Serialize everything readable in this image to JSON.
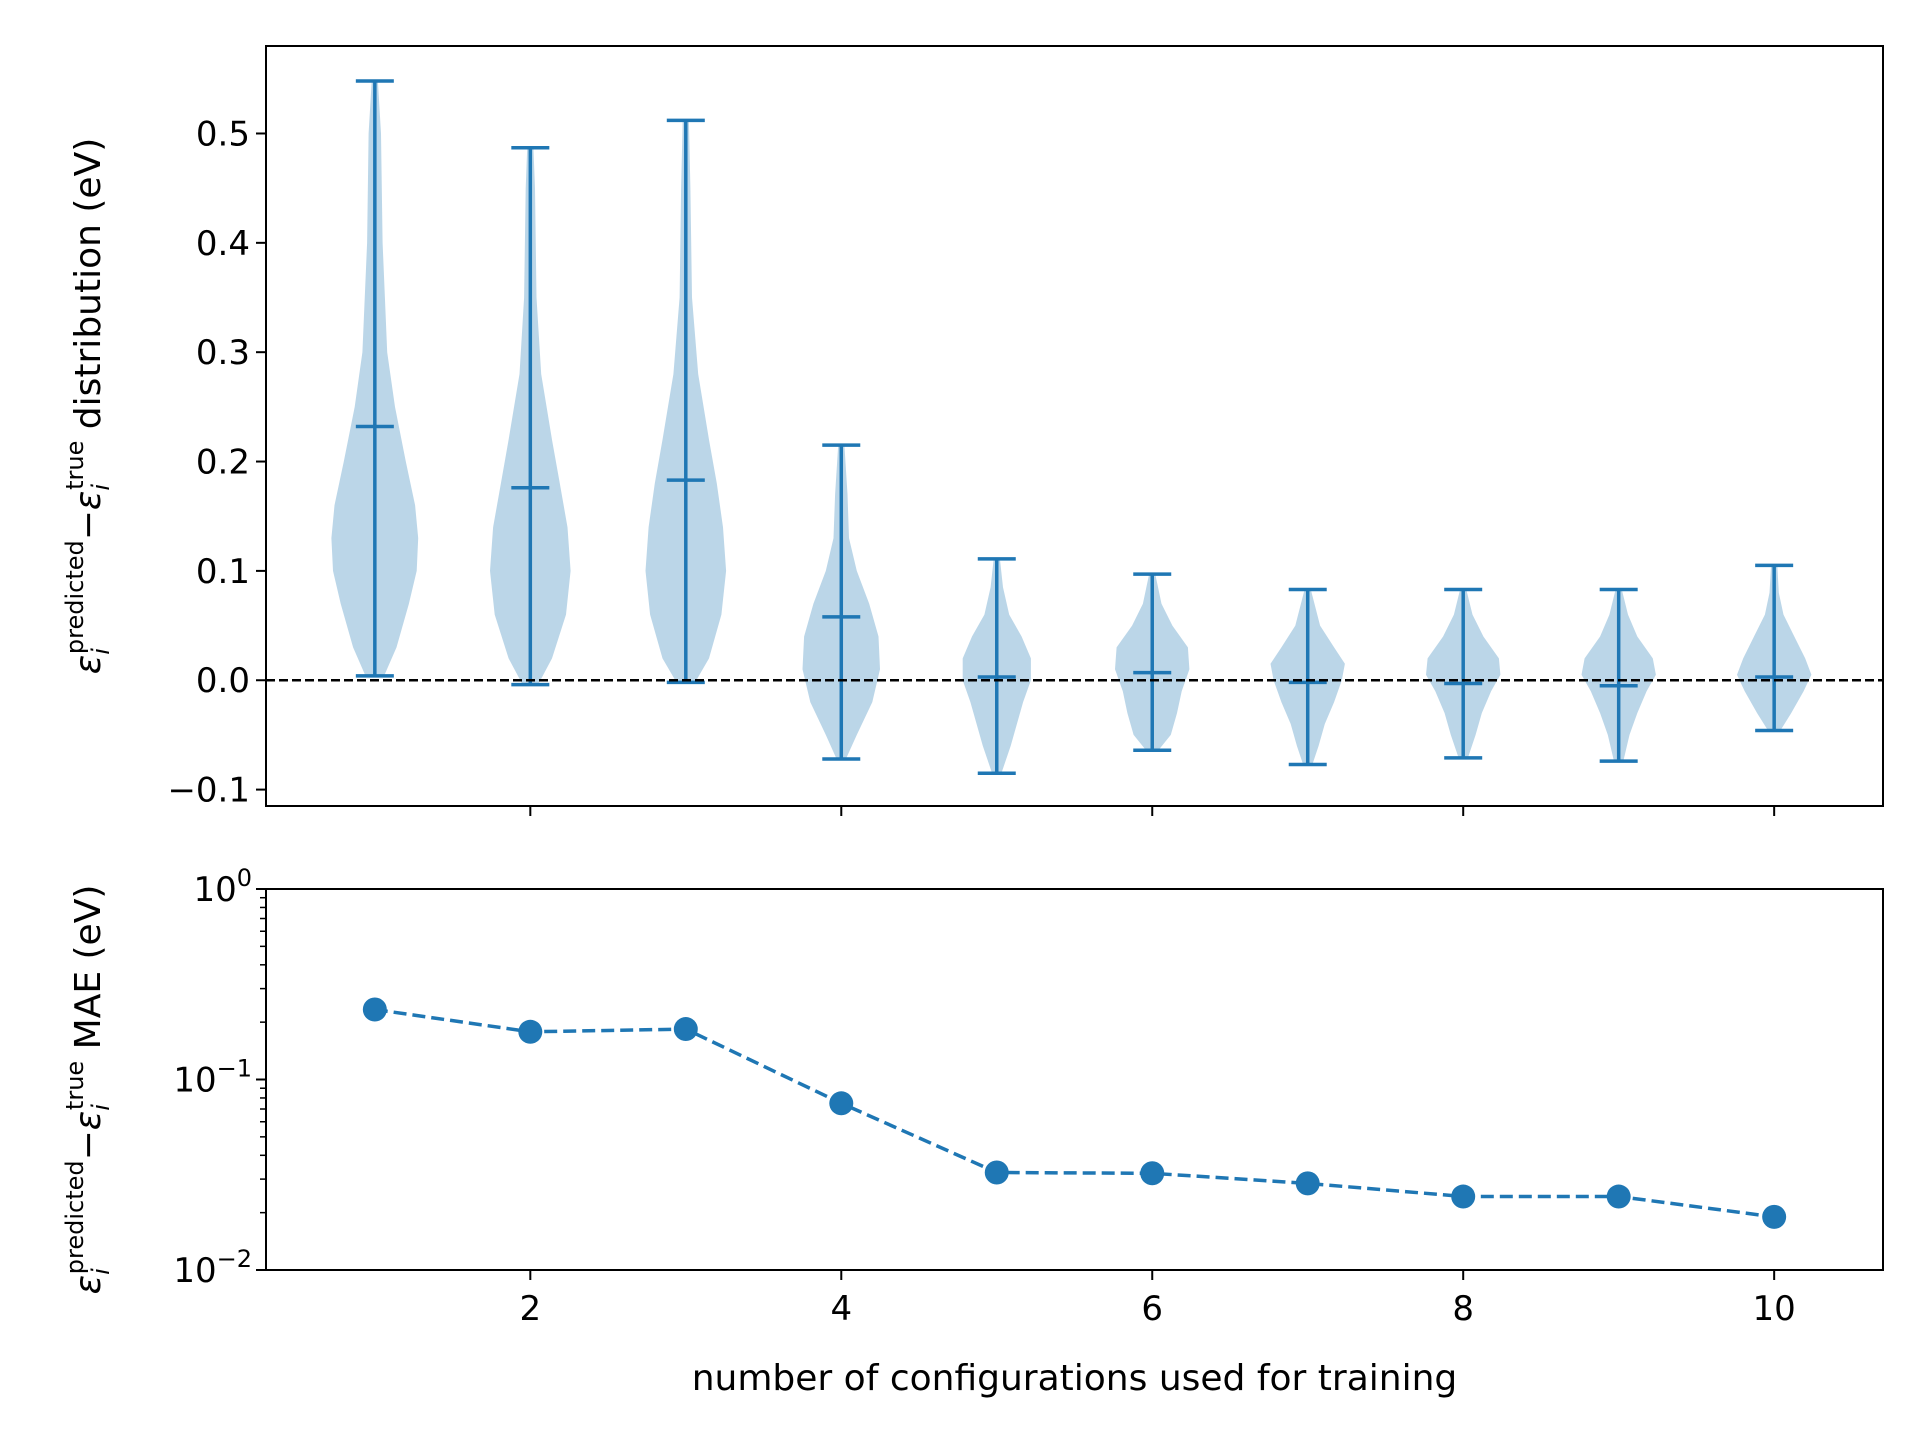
{
  "colors": {
    "series": "#1f77b4",
    "violin_fill": "#1f77b4",
    "zero_line": "#000000"
  },
  "chart_data": [
    {
      "type": "violin",
      "ylabel_parts": {
        "symbol": "ε",
        "sub": "i",
        "sup_predicted": "predicted",
        "minus": "−",
        "sup_true": "true",
        "tail": " distribution (eV)"
      },
      "xlim": [
        0.3,
        10.7
      ],
      "ylim": [
        -0.115,
        0.58
      ],
      "yticks": [
        -0.1,
        0.0,
        0.1,
        0.2,
        0.3,
        0.4,
        0.5
      ],
      "ytick_labels": [
        "−0.1",
        "0.0",
        "0.1",
        "0.2",
        "0.3",
        "0.4",
        "0.5"
      ],
      "xticks": [
        2,
        4,
        6,
        8,
        10
      ],
      "reference_line": {
        "y": 0.0,
        "style": "dashed"
      },
      "violins": [
        {
          "x": 1,
          "min": 0.004,
          "max": 0.548,
          "mean": 0.232,
          "profile": [
            [
              0.004,
              0.06
            ],
            [
              0.03,
              0.14
            ],
            [
              0.07,
              0.22
            ],
            [
              0.1,
              0.27
            ],
            [
              0.13,
              0.28
            ],
            [
              0.16,
              0.26
            ],
            [
              0.2,
              0.2
            ],
            [
              0.25,
              0.13
            ],
            [
              0.3,
              0.08
            ],
            [
              0.4,
              0.05
            ],
            [
              0.5,
              0.04
            ],
            [
              0.548,
              0.02
            ]
          ]
        },
        {
          "x": 2,
          "min": -0.004,
          "max": 0.487,
          "mean": 0.176,
          "profile": [
            [
              -0.004,
              0.05
            ],
            [
              0.02,
              0.14
            ],
            [
              0.06,
              0.23
            ],
            [
              0.1,
              0.26
            ],
            [
              0.14,
              0.24
            ],
            [
              0.18,
              0.19
            ],
            [
              0.22,
              0.14
            ],
            [
              0.28,
              0.07
            ],
            [
              0.35,
              0.04
            ],
            [
              0.45,
              0.03
            ],
            [
              0.487,
              0.02
            ]
          ]
        },
        {
          "x": 3,
          "min": -0.002,
          "max": 0.512,
          "mean": 0.183,
          "profile": [
            [
              -0.002,
              0.06
            ],
            [
              0.02,
              0.15
            ],
            [
              0.06,
              0.23
            ],
            [
              0.1,
              0.26
            ],
            [
              0.14,
              0.24
            ],
            [
              0.18,
              0.2
            ],
            [
              0.22,
              0.15
            ],
            [
              0.28,
              0.08
            ],
            [
              0.35,
              0.04
            ],
            [
              0.45,
              0.03
            ],
            [
              0.512,
              0.02
            ]
          ]
        },
        {
          "x": 4,
          "min": -0.072,
          "max": 0.215,
          "mean": 0.058,
          "profile": [
            [
              -0.072,
              0.03
            ],
            [
              -0.05,
              0.1
            ],
            [
              -0.02,
              0.2
            ],
            [
              0.01,
              0.25
            ],
            [
              0.04,
              0.24
            ],
            [
              0.07,
              0.18
            ],
            [
              0.1,
              0.1
            ],
            [
              0.13,
              0.05
            ],
            [
              0.17,
              0.04
            ],
            [
              0.215,
              0.02
            ]
          ]
        },
        {
          "x": 5,
          "min": -0.085,
          "max": 0.111,
          "mean": 0.003,
          "profile": [
            [
              -0.085,
              0.03
            ],
            [
              -0.06,
              0.09
            ],
            [
              -0.04,
              0.13
            ],
            [
              -0.02,
              0.17
            ],
            [
              0.0,
              0.22
            ],
            [
              0.02,
              0.22
            ],
            [
              0.04,
              0.16
            ],
            [
              0.06,
              0.08
            ],
            [
              0.085,
              0.04
            ],
            [
              0.111,
              0.02
            ]
          ]
        },
        {
          "x": 6,
          "min": -0.064,
          "max": 0.097,
          "mean": 0.007,
          "profile": [
            [
              -0.064,
              0.04
            ],
            [
              -0.05,
              0.12
            ],
            [
              -0.03,
              0.16
            ],
            [
              -0.01,
              0.19
            ],
            [
              0.01,
              0.24
            ],
            [
              0.03,
              0.23
            ],
            [
              0.05,
              0.13
            ],
            [
              0.07,
              0.06
            ],
            [
              0.097,
              0.02
            ]
          ]
        },
        {
          "x": 7,
          "min": -0.077,
          "max": 0.083,
          "mean": -0.002,
          "profile": [
            [
              -0.077,
              0.03
            ],
            [
              -0.06,
              0.07
            ],
            [
              -0.04,
              0.11
            ],
            [
              -0.02,
              0.17
            ],
            [
              0.0,
              0.22
            ],
            [
              0.015,
              0.24
            ],
            [
              0.03,
              0.17
            ],
            [
              0.05,
              0.08
            ],
            [
              0.083,
              0.02
            ]
          ]
        },
        {
          "x": 8,
          "min": -0.071,
          "max": 0.083,
          "mean": -0.003,
          "profile": [
            [
              -0.071,
              0.03
            ],
            [
              -0.05,
              0.08
            ],
            [
              -0.03,
              0.12
            ],
            [
              -0.01,
              0.18
            ],
            [
              0.005,
              0.24
            ],
            [
              0.02,
              0.23
            ],
            [
              0.04,
              0.13
            ],
            [
              0.06,
              0.06
            ],
            [
              0.083,
              0.02
            ]
          ]
        },
        {
          "x": 9,
          "min": -0.074,
          "max": 0.083,
          "mean": -0.005,
          "profile": [
            [
              -0.074,
              0.03
            ],
            [
              -0.05,
              0.07
            ],
            [
              -0.03,
              0.12
            ],
            [
              -0.01,
              0.18
            ],
            [
              0.005,
              0.24
            ],
            [
              0.02,
              0.22
            ],
            [
              0.04,
              0.12
            ],
            [
              0.06,
              0.06
            ],
            [
              0.083,
              0.02
            ]
          ]
        },
        {
          "x": 10,
          "min": -0.046,
          "max": 0.105,
          "mean": 0.003,
          "profile": [
            [
              -0.046,
              0.04
            ],
            [
              -0.03,
              0.11
            ],
            [
              -0.01,
              0.19
            ],
            [
              0.005,
              0.24
            ],
            [
              0.02,
              0.2
            ],
            [
              0.04,
              0.13
            ],
            [
              0.06,
              0.06
            ],
            [
              0.08,
              0.03
            ],
            [
              0.105,
              0.02
            ]
          ]
        }
      ]
    },
    {
      "type": "line",
      "scale": "log",
      "ylabel_parts": {
        "symbol": "ε",
        "sub": "i",
        "sup_predicted": "predicted",
        "minus": "−",
        "sup_true": "true",
        "tail": " MAE (eV)"
      },
      "xlabel": "number of configurations used for training",
      "xlim": [
        0.3,
        10.7
      ],
      "ylim": [
        0.01,
        1.0
      ],
      "xticks": [
        2,
        4,
        6,
        8,
        10
      ],
      "xtick_labels": [
        "2",
        "4",
        "6",
        "8",
        "10"
      ],
      "yticks": [
        0.01,
        0.1,
        1.0
      ],
      "ytick_labels": [
        {
          "base": "10",
          "exp": "−2"
        },
        {
          "base": "10",
          "exp": "−1"
        },
        {
          "base": "10",
          "exp": "0"
        }
      ],
      "line_style": "dashed",
      "marker": "circle",
      "x": [
        1,
        2,
        3,
        4,
        5,
        6,
        7,
        8,
        9,
        10
      ],
      "y": [
        0.233,
        0.178,
        0.184,
        0.075,
        0.0325,
        0.0322,
        0.0285,
        0.0243,
        0.0243,
        0.019
      ]
    }
  ]
}
